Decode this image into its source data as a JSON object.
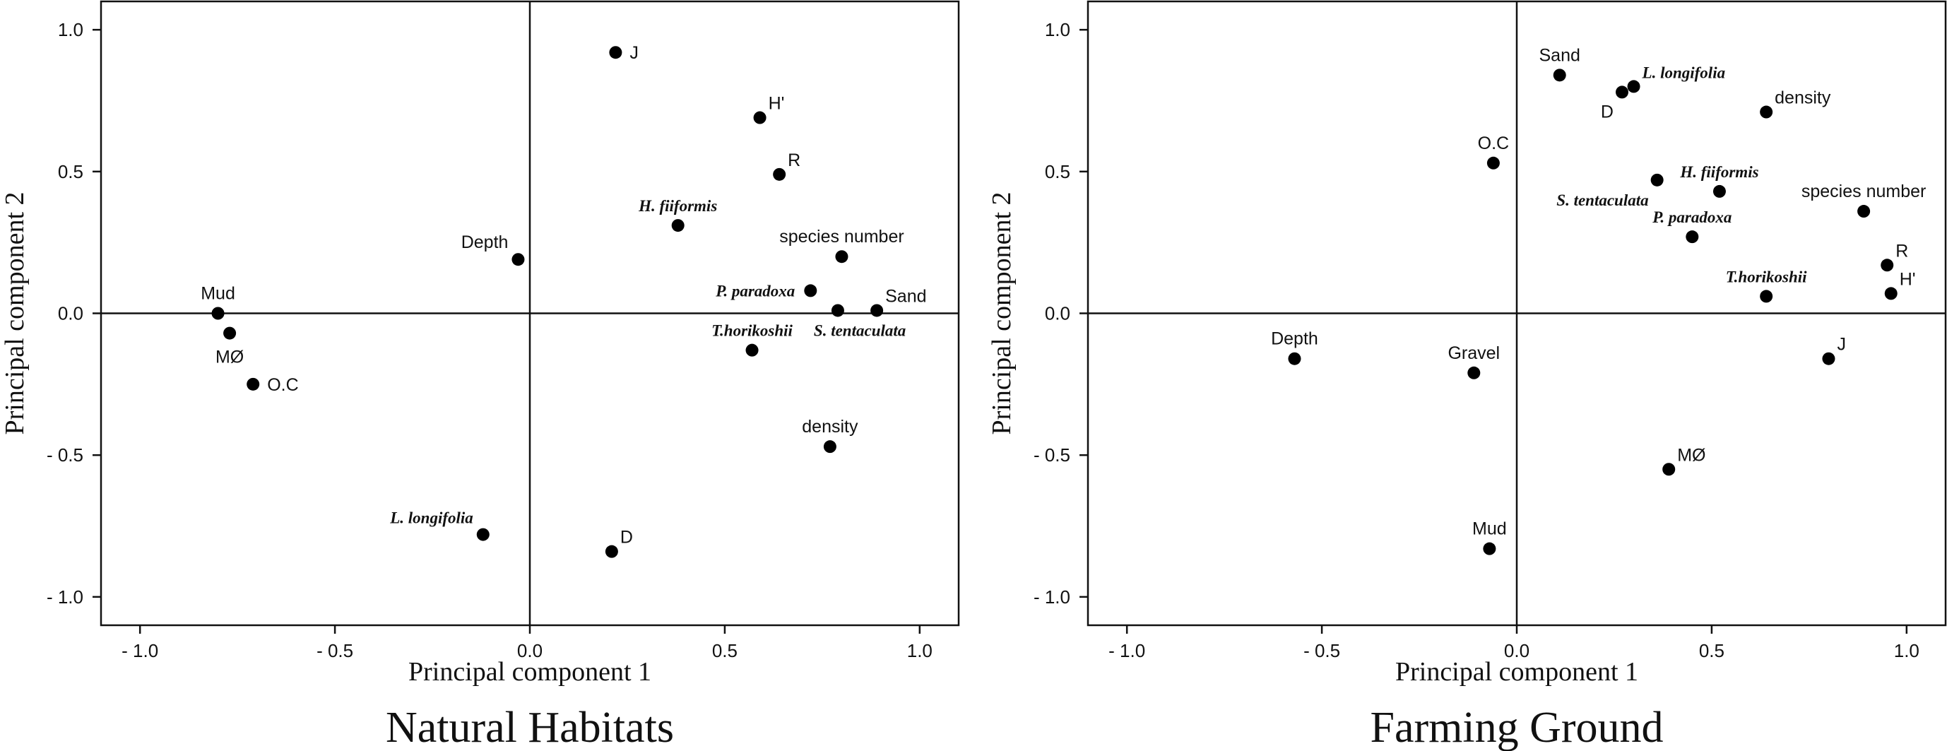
{
  "chart_data": [
    {
      "type": "scatter",
      "title": "Natural Habitats",
      "xlabel": "Principal component 1",
      "ylabel": "Principal component 2",
      "xlim": [
        -1.1,
        1.1
      ],
      "ylim": [
        -1.1,
        1.1
      ],
      "xticks": [
        -1.0,
        -0.5,
        0.0,
        0.5,
        1.0
      ],
      "yticks": [
        -1.0,
        -0.5,
        0.0,
        0.5,
        1.0
      ],
      "xtick_labels": [
        "- 1.0",
        "- 0.5",
        "0.0",
        "0.5",
        "1.0"
      ],
      "ytick_labels": [
        "- 1.0",
        "- 0.5",
        "0.0",
        "0.5",
        "1.0"
      ],
      "zero_lines": true,
      "grid": false,
      "points": [
        {
          "label": "J",
          "x": 0.22,
          "y": 0.92,
          "species": false,
          "pos": "right"
        },
        {
          "label": "H'",
          "x": 0.59,
          "y": 0.69,
          "species": false,
          "pos": "upright"
        },
        {
          "label": "R",
          "x": 0.64,
          "y": 0.49,
          "species": false,
          "pos": "upright"
        },
        {
          "label": "H. fiiformis",
          "x": 0.38,
          "y": 0.31,
          "species": true,
          "pos": "above"
        },
        {
          "label": "species number",
          "x": 0.8,
          "y": 0.2,
          "species": false,
          "pos": "above"
        },
        {
          "label": "Depth",
          "x": -0.03,
          "y": 0.19,
          "species": false,
          "pos": "upleft"
        },
        {
          "label": "P. paradoxa",
          "x": 0.72,
          "y": 0.08,
          "species": true,
          "pos": "left"
        },
        {
          "label": "S. tentaculata",
          "x": 0.79,
          "y": 0.01,
          "species": true,
          "pos": "belowright"
        },
        {
          "label": "Sand",
          "x": 0.89,
          "y": 0.01,
          "species": false,
          "pos": "upright"
        },
        {
          "label": "Mud",
          "x": -0.8,
          "y": 0.0,
          "species": false,
          "pos": "above"
        },
        {
          "label": "MØ",
          "x": -0.77,
          "y": -0.07,
          "species": false,
          "pos": "below"
        },
        {
          "label": "T.horikoshii",
          "x": 0.57,
          "y": -0.13,
          "species": true,
          "pos": "above"
        },
        {
          "label": "O.C",
          "x": -0.71,
          "y": -0.25,
          "species": false,
          "pos": "right"
        },
        {
          "label": "density",
          "x": 0.77,
          "y": -0.47,
          "species": false,
          "pos": "above"
        },
        {
          "label": "L. longifolia",
          "x": -0.12,
          "y": -0.78,
          "species": true,
          "pos": "upleft"
        },
        {
          "label": "D",
          "x": 0.21,
          "y": -0.84,
          "species": false,
          "pos": "upright"
        }
      ]
    },
    {
      "type": "scatter",
      "title": "Farming Ground",
      "xlabel": "Principal component 1",
      "ylabel": "Principal component 2",
      "xlim": [
        -1.1,
        1.1
      ],
      "ylim": [
        -1.1,
        1.1
      ],
      "xticks": [
        -1.0,
        -0.5,
        0.0,
        0.5,
        1.0
      ],
      "yticks": [
        -1.0,
        -0.5,
        0.0,
        0.5,
        1.0
      ],
      "xtick_labels": [
        "- 1.0",
        "- 0.5",
        "0.0",
        "0.5",
        "1.0"
      ],
      "ytick_labels": [
        "- 1.0",
        "- 0.5",
        "0.0",
        "0.5",
        "1.0"
      ],
      "zero_lines": true,
      "grid": false,
      "points": [
        {
          "label": "Sand",
          "x": 0.11,
          "y": 0.84,
          "species": false,
          "pos": "above"
        },
        {
          "label": "L. longifolia",
          "x": 0.3,
          "y": 0.8,
          "species": true,
          "pos": "upright"
        },
        {
          "label": "D",
          "x": 0.27,
          "y": 0.78,
          "species": false,
          "pos": "belowleft"
        },
        {
          "label": "density",
          "x": 0.64,
          "y": 0.71,
          "species": false,
          "pos": "upright"
        },
        {
          "label": "O.C",
          "x": -0.06,
          "y": 0.53,
          "species": false,
          "pos": "above"
        },
        {
          "label": "S. tentaculata",
          "x": 0.36,
          "y": 0.47,
          "species": true,
          "pos": "belowleft"
        },
        {
          "label": "H. fiiformis",
          "x": 0.52,
          "y": 0.43,
          "species": true,
          "pos": "above"
        },
        {
          "label": "species number",
          "x": 0.89,
          "y": 0.36,
          "species": false,
          "pos": "above"
        },
        {
          "label": "P. paradoxa",
          "x": 0.45,
          "y": 0.27,
          "species": true,
          "pos": "above"
        },
        {
          "label": "R",
          "x": 0.95,
          "y": 0.17,
          "species": false,
          "pos": "upright"
        },
        {
          "label": "H'",
          "x": 0.96,
          "y": 0.07,
          "species": false,
          "pos": "upright"
        },
        {
          "label": "T.horikoshii",
          "x": 0.64,
          "y": 0.06,
          "species": true,
          "pos": "above"
        },
        {
          "label": "J",
          "x": 0.8,
          "y": -0.16,
          "species": false,
          "pos": "upright"
        },
        {
          "label": "Depth",
          "x": -0.57,
          "y": -0.16,
          "species": false,
          "pos": "above"
        },
        {
          "label": "Gravel",
          "x": -0.11,
          "y": -0.21,
          "species": false,
          "pos": "above"
        },
        {
          "label": "MØ",
          "x": 0.39,
          "y": -0.55,
          "species": false,
          "pos": "upright"
        },
        {
          "label": "Mud",
          "x": -0.07,
          "y": -0.83,
          "species": false,
          "pos": "above"
        }
      ]
    }
  ]
}
